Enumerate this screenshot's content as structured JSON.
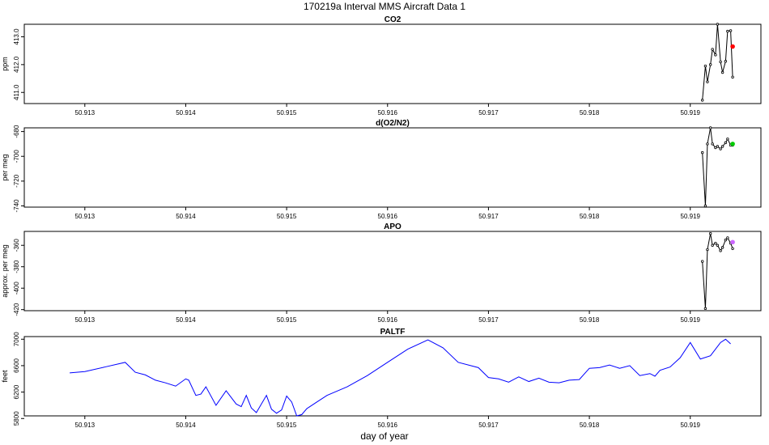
{
  "figure": {
    "title": "170219a   Interval MMS Aircraft Data 1",
    "xlabel": "day of year"
  },
  "chart_data": [
    {
      "type": "line",
      "title": "CO2",
      "ylabel": "ppm",
      "xlim": [
        50.9124,
        50.9197
      ],
      "ylim": [
        410.6,
        413.45
      ],
      "xticks": [
        50.913,
        50.914,
        50.915,
        50.916,
        50.917,
        50.918,
        50.919
      ],
      "yticks": [
        411.0,
        412.0,
        413.0
      ],
      "xtick_labels": [
        "50.913",
        "50.914",
        "50.915",
        "50.916",
        "50.917",
        "50.918",
        "50.919"
      ],
      "ytick_labels": [
        "411.0",
        "412.0",
        "413.0"
      ],
      "series": [
        {
          "color": "#000000",
          "x": [
            50.91912,
            50.91915,
            50.91917,
            50.9192,
            50.91922,
            50.91925,
            50.91927,
            50.9193,
            50.91932,
            50.91935,
            50.91937,
            50.9194,
            50.91942
          ],
          "y": [
            410.72,
            411.95,
            411.38,
            412.0,
            412.55,
            412.35,
            413.45,
            412.1,
            411.72,
            412.12,
            413.2,
            413.22,
            411.55
          ]
        }
      ],
      "markers": [
        {
          "color": "#ff0000",
          "x": 50.91942,
          "y": 412.65
        }
      ]
    },
    {
      "type": "line",
      "title": "d(O2/N2)",
      "ylabel": "per meg",
      "xlim": [
        50.9124,
        50.9197
      ],
      "ylim": [
        -741,
        -677
      ],
      "xticks": [
        50.913,
        50.914,
        50.915,
        50.916,
        50.917,
        50.918,
        50.919
      ],
      "yticks": [
        -740,
        -720,
        -700,
        -680
      ],
      "xtick_labels": [
        "50.913",
        "50.914",
        "50.915",
        "50.916",
        "50.917",
        "50.918",
        "50.919"
      ],
      "ytick_labels": [
        "-740",
        "-720",
        "-700",
        "-680"
      ],
      "series": [
        {
          "color": "#000000",
          "x": [
            50.91912,
            50.91915,
            50.91917,
            50.9192,
            50.91922,
            50.91925,
            50.91927,
            50.9193,
            50.91932,
            50.91935,
            50.91937,
            50.9194,
            50.91942
          ],
          "y": [
            -697,
            -740,
            -690,
            -677,
            -690,
            -693,
            -692,
            -694,
            -692,
            -689,
            -686,
            -691,
            -691
          ]
        }
      ],
      "markers": [
        {
          "color": "#00cc00",
          "x": 50.91942,
          "y": -690
        }
      ]
    },
    {
      "type": "line",
      "title": "APO",
      "ylabel": "approx. per meg",
      "xlim": [
        50.9124,
        50.9197
      ],
      "ylim": [
        -421,
        -347
      ],
      "xticks": [
        50.913,
        50.914,
        50.915,
        50.916,
        50.917,
        50.918,
        50.919
      ],
      "yticks": [
        -420,
        -400,
        -380,
        -360
      ],
      "xtick_labels": [
        "50.913",
        "50.914",
        "50.915",
        "50.916",
        "50.917",
        "50.918",
        "50.919"
      ],
      "ytick_labels": [
        "-420",
        "-400",
        "-380",
        "-360"
      ],
      "series": [
        {
          "color": "#000000",
          "x": [
            50.91912,
            50.91915,
            50.91917,
            50.9192,
            50.91922,
            50.91925,
            50.91927,
            50.9193,
            50.91932,
            50.91935,
            50.91937,
            50.9194,
            50.91942
          ],
          "y": [
            -375,
            -419,
            -364,
            -349,
            -360,
            -358,
            -360,
            -365,
            -362,
            -355,
            -353,
            -358,
            -363
          ]
        }
      ],
      "markers": [
        {
          "color": "#cc66ff",
          "x": 50.91942,
          "y": -357
        }
      ]
    },
    {
      "type": "line",
      "title": "PALTF",
      "ylabel": "feet",
      "xlim": [
        50.9124,
        50.9197
      ],
      "ylim": [
        5840,
        7040
      ],
      "xticks": [
        50.913,
        50.914,
        50.915,
        50.916,
        50.917,
        50.918,
        50.919
      ],
      "yticks": [
        5800,
        6200,
        6600,
        7000
      ],
      "xtick_labels": [
        "50.913",
        "50.914",
        "50.915",
        "50.916",
        "50.917",
        "50.918",
        "50.919"
      ],
      "ytick_labels": [
        "5800",
        "6200",
        "6600",
        "7000"
      ],
      "series": [
        {
          "color": "#0000ff",
          "x": [
            50.91285,
            50.913,
            50.9132,
            50.9134,
            50.9135,
            50.9136,
            50.9137,
            50.9138,
            50.9139,
            50.914,
            50.91403,
            50.9141,
            50.91415,
            50.9142,
            50.9143,
            50.9144,
            50.9145,
            50.91455,
            50.9146,
            50.91465,
            50.9147,
            50.9148,
            50.91485,
            50.9149,
            50.91495,
            50.915,
            50.91505,
            50.9151,
            50.91515,
            50.9152,
            50.9153,
            50.9154,
            50.9156,
            50.9158,
            50.916,
            50.9162,
            50.9164,
            50.91655,
            50.9167,
            50.9169,
            50.917,
            50.9171,
            50.9172,
            50.9173,
            50.9174,
            50.9175,
            50.9176,
            50.9177,
            50.9178,
            50.9179,
            50.918,
            50.9181,
            50.9182,
            50.9183,
            50.9184,
            50.9185,
            50.9186,
            50.91865,
            50.9187,
            50.9188,
            50.9189,
            50.919,
            50.9191,
            50.9192,
            50.9193,
            50.91935,
            50.9194
          ],
          "y": [
            6490,
            6510,
            6580,
            6650,
            6500,
            6460,
            6380,
            6340,
            6290,
            6400,
            6380,
            6150,
            6170,
            6280,
            6000,
            6220,
            6020,
            5980,
            6150,
            5960,
            5890,
            6150,
            5940,
            5880,
            5930,
            6140,
            6050,
            5840,
            5860,
            5950,
            6050,
            6150,
            6280,
            6450,
            6650,
            6850,
            6990,
            6870,
            6650,
            6570,
            6420,
            6400,
            6350,
            6430,
            6360,
            6410,
            6350,
            6340,
            6380,
            6390,
            6560,
            6570,
            6610,
            6560,
            6600,
            6450,
            6480,
            6440,
            6530,
            6580,
            6720,
            6950,
            6700,
            6750,
            6950,
            7000,
            6930
          ]
        }
      ]
    }
  ]
}
